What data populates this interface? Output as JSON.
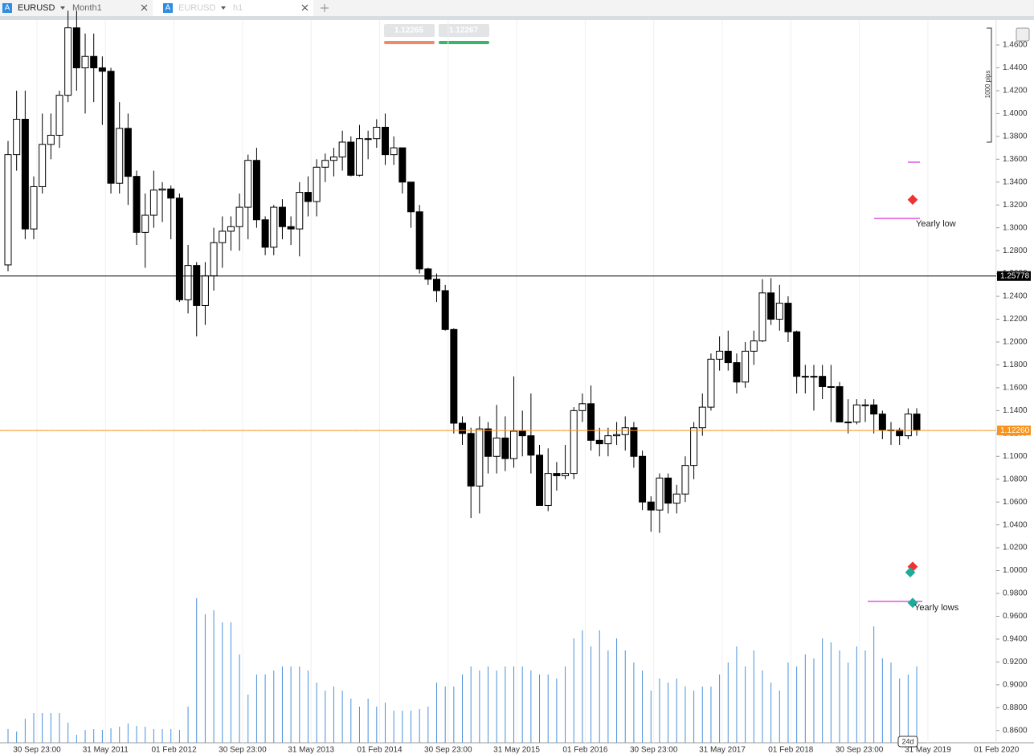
{
  "header": {
    "tabs": [
      {
        "icon": "A",
        "symbol": "EURUSD",
        "timeframe": "Month1"
      },
      {
        "icon": "A",
        "symbol": "EURUSD",
        "timeframe": "h1"
      }
    ],
    "buttons": [
      "1.12265",
      "1.12267"
    ]
  },
  "chart_data": {
    "type": "candlestick",
    "up_color": "#ffffff",
    "down_color": "#000000",
    "volume_color": "#4a90d9",
    "ylim": [
      0.8493,
      1.4818
    ],
    "yticks": [
      {
        "value": 0.86,
        "label": "0.8600"
      },
      {
        "value": 0.88,
        "label": "0.8800"
      },
      {
        "value": 0.9,
        "label": "0.9000"
      },
      {
        "value": 0.92,
        "label": "0.9200"
      },
      {
        "value": 0.94,
        "label": "0.9400"
      },
      {
        "value": 0.96,
        "label": "0.9600"
      },
      {
        "value": 0.98,
        "label": "0.9800"
      },
      {
        "value": 1.0,
        "label": "1.0000"
      },
      {
        "value": 1.02,
        "label": "1.0200"
      },
      {
        "value": 1.04,
        "label": "1.0400"
      },
      {
        "value": 1.06,
        "label": "1.0600"
      },
      {
        "value": 1.08,
        "label": "1.0800"
      },
      {
        "value": 1.1,
        "label": "1.1000"
      },
      {
        "value": 1.12,
        "label": "1.1200"
      },
      {
        "value": 1.14,
        "label": "1.1400"
      },
      {
        "value": 1.16,
        "label": "1.1600"
      },
      {
        "value": 1.18,
        "label": "1.1800"
      },
      {
        "value": 1.2,
        "label": "1.2000"
      },
      {
        "value": 1.22,
        "label": "1.2200"
      },
      {
        "value": 1.24,
        "label": "1.2400"
      },
      {
        "value": 1.26,
        "label": "1.2600"
      },
      {
        "value": 1.28,
        "label": "1.2800"
      },
      {
        "value": 1.3,
        "label": "1.3000"
      },
      {
        "value": 1.32,
        "label": "1.3200"
      },
      {
        "value": 1.34,
        "label": "1.3400"
      },
      {
        "value": 1.36,
        "label": "1.3600"
      },
      {
        "value": 1.38,
        "label": "1.3800"
      },
      {
        "value": 1.4,
        "label": "1.4000"
      },
      {
        "value": 1.42,
        "label": "1.4200"
      },
      {
        "value": 1.44,
        "label": "1.4400"
      },
      {
        "value": 1.46,
        "label": "1.4600"
      }
    ],
    "x_labels": [
      "30 Sep 23:00",
      "31 May 2011",
      "01 Feb 2012",
      "30 Sep 23:00",
      "31 May 2013",
      "01 Feb 2014",
      "30 Sep 23:00",
      "31 May 2015",
      "01 Feb 2016",
      "30 Sep 23:00",
      "31 May 2017",
      "01 Feb 2018",
      "30 Sep 23:00",
      "31 May 2019",
      "01 Feb 2020"
    ],
    "ohlc": [
      [
        1.2675,
        1.376,
        1.262,
        1.364
      ],
      [
        1.364,
        1.42,
        1.35,
        1.395
      ],
      [
        1.395,
        1.42,
        1.29,
        1.299
      ],
      [
        1.299,
        1.345,
        1.29,
        1.336
      ],
      [
        1.336,
        1.4,
        1.33,
        1.373
      ],
      [
        1.373,
        1.4,
        1.36,
        1.381
      ],
      [
        1.381,
        1.42,
        1.37,
        1.416
      ],
      [
        1.416,
        1.49,
        1.41,
        1.475
      ],
      [
        1.475,
        1.49,
        1.42,
        1.44
      ],
      [
        1.44,
        1.47,
        1.4,
        1.45
      ],
      [
        1.45,
        1.47,
        1.41,
        1.44
      ],
      [
        1.44,
        1.45,
        1.39,
        1.437
      ],
      [
        1.437,
        1.44,
        1.33,
        1.339
      ],
      [
        1.339,
        1.41,
        1.33,
        1.387
      ],
      [
        1.387,
        1.4,
        1.32,
        1.345
      ],
      [
        1.345,
        1.35,
        1.285,
        1.296
      ],
      [
        1.296,
        1.33,
        1.265,
        1.311
      ],
      [
        1.311,
        1.35,
        1.3,
        1.333
      ],
      [
        1.333,
        1.34,
        1.305,
        1.334
      ],
      [
        1.334,
        1.337,
        1.29,
        1.326
      ],
      [
        1.326,
        1.33,
        1.235,
        1.237
      ],
      [
        1.237,
        1.285,
        1.225,
        1.267
      ],
      [
        1.267,
        1.27,
        1.205,
        1.232
      ],
      [
        1.232,
        1.27,
        1.215,
        1.258
      ],
      [
        1.258,
        1.3,
        1.245,
        1.287
      ],
      [
        1.287,
        1.31,
        1.265,
        1.297
      ],
      [
        1.297,
        1.31,
        1.28,
        1.301
      ],
      [
        1.301,
        1.33,
        1.28,
        1.318
      ],
      [
        1.318,
        1.364,
        1.29,
        1.359
      ],
      [
        1.359,
        1.37,
        1.3,
        1.307
      ],
      [
        1.307,
        1.31,
        1.276,
        1.283
      ],
      [
        1.283,
        1.32,
        1.276,
        1.318
      ],
      [
        1.318,
        1.325,
        1.29,
        1.301
      ],
      [
        1.301,
        1.31,
        1.285,
        1.299
      ],
      [
        1.299,
        1.34,
        1.275,
        1.331
      ],
      [
        1.331,
        1.345,
        1.31,
        1.323
      ],
      [
        1.323,
        1.36,
        1.31,
        1.353
      ],
      [
        1.353,
        1.365,
        1.34,
        1.359
      ],
      [
        1.359,
        1.37,
        1.345,
        1.362
      ],
      [
        1.362,
        1.385,
        1.35,
        1.375
      ],
      [
        1.375,
        1.38,
        1.345,
        1.346
      ],
      [
        1.346,
        1.39,
        1.345,
        1.378
      ],
      [
        1.378,
        1.385,
        1.36,
        1.378
      ],
      [
        1.378,
        1.395,
        1.37,
        1.388
      ],
      [
        1.388,
        1.4,
        1.355,
        1.364
      ],
      [
        1.364,
        1.38,
        1.355,
        1.37
      ],
      [
        1.37,
        1.37,
        1.33,
        1.34
      ],
      [
        1.34,
        1.34,
        1.3,
        1.314
      ],
      [
        1.314,
        1.32,
        1.26,
        1.264
      ],
      [
        1.264,
        1.265,
        1.25,
        1.255
      ],
      [
        1.255,
        1.26,
        1.235,
        1.245
      ],
      [
        1.245,
        1.25,
        1.21,
        1.211
      ],
      [
        1.211,
        1.212,
        1.12,
        1.129
      ],
      [
        1.129,
        1.135,
        1.11,
        1.12
      ],
      [
        1.12,
        1.125,
        1.046,
        1.074
      ],
      [
        1.074,
        1.135,
        1.05,
        1.124
      ],
      [
        1.124,
        1.13,
        1.085,
        1.1
      ],
      [
        1.1,
        1.145,
        1.085,
        1.116
      ],
      [
        1.116,
        1.135,
        1.087,
        1.098
      ],
      [
        1.098,
        1.17,
        1.09,
        1.122
      ],
      [
        1.122,
        1.14,
        1.1,
        1.118
      ],
      [
        1.118,
        1.155,
        1.085,
        1.101
      ],
      [
        1.101,
        1.11,
        1.057,
        1.057
      ],
      [
        1.057,
        1.107,
        1.052,
        1.085
      ],
      [
        1.085,
        1.095,
        1.07,
        1.083
      ],
      [
        1.083,
        1.11,
        1.08,
        1.085
      ],
      [
        1.085,
        1.143,
        1.08,
        1.14
      ],
      [
        1.14,
        1.155,
        1.13,
        1.146
      ],
      [
        1.146,
        1.162,
        1.105,
        1.114
      ],
      [
        1.114,
        1.125,
        1.1,
        1.111
      ],
      [
        1.111,
        1.125,
        1.1,
        1.118
      ],
      [
        1.118,
        1.13,
        1.11,
        1.119
      ],
      [
        1.119,
        1.135,
        1.105,
        1.125
      ],
      [
        1.125,
        1.13,
        1.09,
        1.1
      ],
      [
        1.1,
        1.105,
        1.053,
        1.06
      ],
      [
        1.06,
        1.065,
        1.034,
        1.053
      ],
      [
        1.053,
        1.085,
        1.033,
        1.081
      ],
      [
        1.081,
        1.085,
        1.05,
        1.059
      ],
      [
        1.059,
        1.075,
        1.05,
        1.067
      ],
      [
        1.067,
        1.1,
        1.06,
        1.092
      ],
      [
        1.092,
        1.13,
        1.08,
        1.125
      ],
      [
        1.125,
        1.155,
        1.118,
        1.143
      ],
      [
        1.143,
        1.19,
        1.14,
        1.185
      ],
      [
        1.185,
        1.205,
        1.175,
        1.192
      ],
      [
        1.192,
        1.21,
        1.175,
        1.182
      ],
      [
        1.182,
        1.19,
        1.155,
        1.165
      ],
      [
        1.165,
        1.2,
        1.16,
        1.192
      ],
      [
        1.192,
        1.21,
        1.18,
        1.201
      ],
      [
        1.201,
        1.255,
        1.2,
        1.243
      ],
      [
        1.243,
        1.256,
        1.215,
        1.22
      ],
      [
        1.22,
        1.25,
        1.21,
        1.234
      ],
      [
        1.234,
        1.24,
        1.2,
        1.209
      ],
      [
        1.209,
        1.21,
        1.155,
        1.17
      ],
      [
        1.17,
        1.18,
        1.155,
        1.17
      ],
      [
        1.17,
        1.18,
        1.14,
        1.17
      ],
      [
        1.17,
        1.18,
        1.15,
        1.161
      ],
      [
        1.161,
        1.18,
        1.13,
        1.161
      ],
      [
        1.161,
        1.165,
        1.13,
        1.13
      ],
      [
        1.13,
        1.15,
        1.12,
        1.13
      ],
      [
        1.13,
        1.15,
        1.128,
        1.145
      ],
      [
        1.145,
        1.15,
        1.13,
        1.145
      ],
      [
        1.145,
        1.15,
        1.12,
        1.137
      ],
      [
        1.137,
        1.14,
        1.115,
        1.123
      ],
      [
        1.123,
        1.13,
        1.11,
        1.123
      ],
      [
        1.123,
        1.125,
        1.11,
        1.118
      ],
      [
        1.118,
        1.142,
        1.115,
        1.137
      ],
      [
        1.137,
        1.142,
        1.118,
        1.123
      ]
    ],
    "volume": [
      17,
      14,
      30,
      37,
      37,
      37,
      37,
      25,
      10,
      16,
      17,
      16,
      18,
      20,
      24,
      21,
      20,
      17,
      17,
      17,
      16,
      45,
      180,
      160,
      165,
      150,
      150,
      110,
      60,
      85,
      85,
      90,
      95,
      95,
      95,
      90,
      75,
      65,
      70,
      65,
      55,
      45,
      55,
      45,
      50,
      40,
      40,
      40,
      42,
      45,
      75,
      70,
      70,
      85,
      95,
      90,
      95,
      90,
      95,
      95,
      95,
      90,
      85,
      85,
      80,
      95,
      130,
      140,
      120,
      140,
      115,
      130,
      115,
      100,
      90,
      65,
      80,
      75,
      80,
      70,
      65,
      70,
      70,
      85,
      100,
      120,
      95,
      115,
      90,
      75,
      65,
      100,
      95,
      110,
      105,
      130,
      125,
      115,
      100,
      120,
      115,
      145,
      105,
      100,
      80,
      85,
      95
    ],
    "price_lines": [
      {
        "value": 1.25778,
        "color": "#000000"
      },
      {
        "value": 1.1227,
        "label": "1.12270",
        "color": "#f5c36b",
        "dashed": true
      },
      {
        "value": 1.1226,
        "label": "1.12260",
        "color": "#f7931e"
      }
    ],
    "annotations": [
      "Yearly low",
      "Yearly lows",
      "1000 pips",
      "24d"
    ]
  }
}
